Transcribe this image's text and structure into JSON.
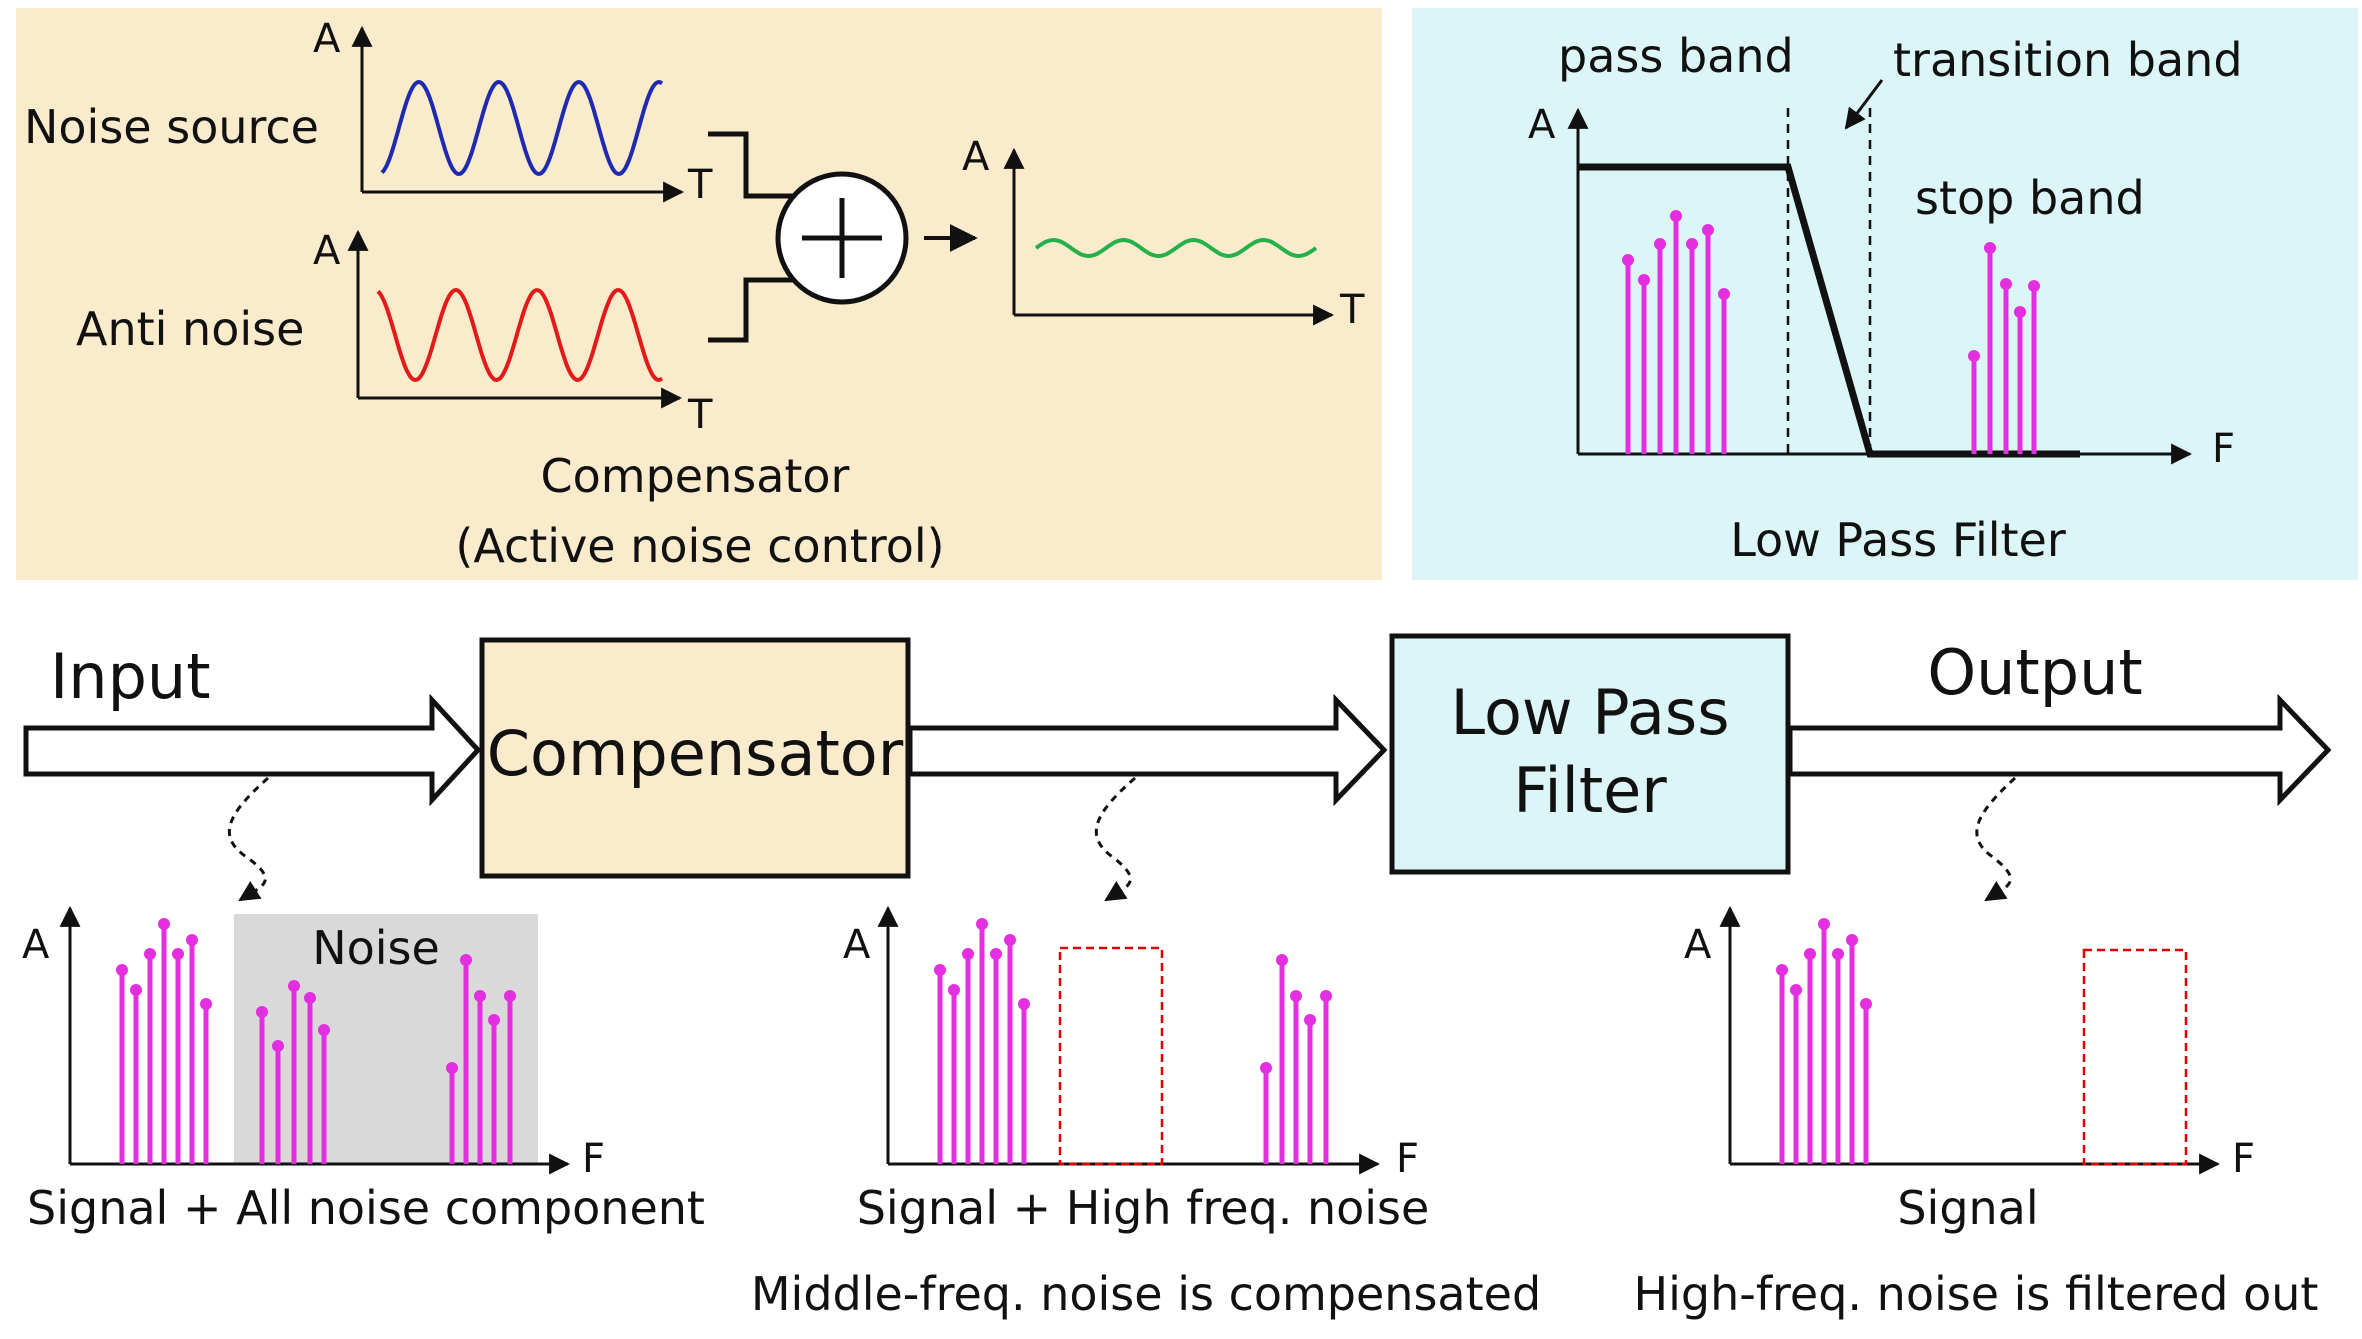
{
  "colors": {
    "compensator_bg": "#faebcc",
    "filter_bg": "#dcf6f7",
    "noise_shade": "#d9d9d9",
    "spectrum": "#e42fe0",
    "noise_wave": "#1f2ab0",
    "anti_wave": "#e21a1a",
    "result_wave": "#26b04a",
    "dashed_box": "#e00000"
  },
  "compensator_panel": {
    "noise_source_label": "Noise source",
    "anti_noise_label": "Anti noise",
    "axis_a": "A",
    "axis_t": "T",
    "caption_line1": "Compensator",
    "caption_line2": "(Active noise control)",
    "sum_symbol": "plus-in-circle"
  },
  "filter_panel": {
    "pass_band": "pass band",
    "transition_band": "transition band",
    "stop_band": "stop band",
    "axis_a": "A",
    "axis_f": "F",
    "caption": "Low Pass Filter"
  },
  "flow": {
    "input_label": "Input",
    "compensator_label": "Compensator",
    "filter_line1": "Low Pass",
    "filter_line2": "Filter",
    "output_label": "Output"
  },
  "spectra": [
    {
      "axis_a": "A",
      "axis_f": "F",
      "noise_label": "Noise",
      "caption": "Signal + All noise component",
      "subcaption": ""
    },
    {
      "axis_a": "A",
      "axis_f": "F",
      "caption": "Signal + High freq. noise",
      "subcaption": "Middle-freq. noise is compensated"
    },
    {
      "axis_a": "A",
      "axis_f": "F",
      "caption": "Signal",
      "subcaption": "High-freq. noise is filtered out"
    }
  ]
}
